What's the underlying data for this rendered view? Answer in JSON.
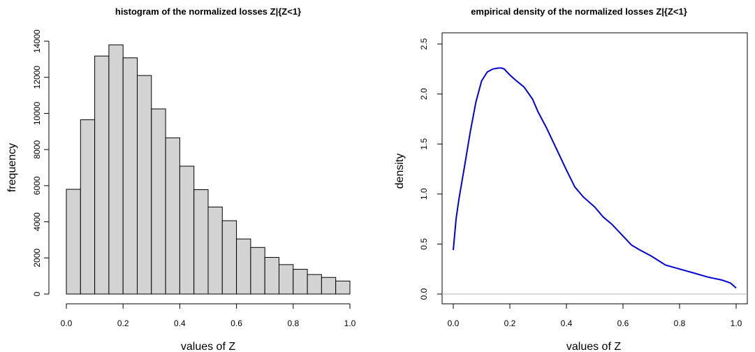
{
  "chart_data": [
    {
      "type": "bar",
      "title": "histogram of the normalized losses Z|{Z<1}",
      "xlabel": "values of Z",
      "ylabel": "frequency",
      "bin_edges": [
        0.0,
        0.05,
        0.1,
        0.15,
        0.2,
        0.25,
        0.3,
        0.35,
        0.4,
        0.45,
        0.5,
        0.55,
        0.6,
        0.65,
        0.7,
        0.75,
        0.8,
        0.85,
        0.9,
        0.95,
        1.0
      ],
      "values": [
        5800,
        9650,
        13180,
        13800,
        13080,
        12100,
        10250,
        8650,
        7080,
        5780,
        4820,
        4060,
        3050,
        2580,
        2030,
        1630,
        1370,
        1080,
        920,
        720
      ],
      "xlim": [
        0,
        1
      ],
      "ylim": [
        0,
        14000
      ],
      "x_ticks": [
        "0.0",
        "0.2",
        "0.4",
        "0.6",
        "0.8",
        "1.0"
      ],
      "y_ticks": [
        "0",
        "2000",
        "4000",
        "6000",
        "8000",
        "10000",
        "12000",
        "14000"
      ],
      "bar_color": "#d3d3d3"
    },
    {
      "type": "line",
      "title": "empirical density of the normalized losses Z|{Z<1}",
      "xlabel": "values of Z",
      "ylabel": "density",
      "x": [
        0.0,
        0.01,
        0.02,
        0.04,
        0.06,
        0.08,
        0.1,
        0.12,
        0.14,
        0.16,
        0.17,
        0.18,
        0.2,
        0.22,
        0.25,
        0.28,
        0.3,
        0.33,
        0.36,
        0.4,
        0.43,
        0.46,
        0.5,
        0.53,
        0.56,
        0.6,
        0.63,
        0.66,
        0.7,
        0.75,
        0.8,
        0.85,
        0.9,
        0.95,
        0.98,
        1.0
      ],
      "y": [
        0.44,
        0.75,
        0.95,
        1.28,
        1.62,
        1.92,
        2.13,
        2.22,
        2.25,
        2.26,
        2.26,
        2.25,
        2.19,
        2.14,
        2.07,
        1.95,
        1.82,
        1.66,
        1.48,
        1.24,
        1.07,
        0.97,
        0.87,
        0.77,
        0.7,
        0.58,
        0.49,
        0.44,
        0.38,
        0.29,
        0.25,
        0.21,
        0.17,
        0.14,
        0.11,
        0.06
      ],
      "xlim": [
        0,
        1
      ],
      "ylim": [
        0,
        2.5
      ],
      "x_ticks": [
        "0.0",
        "0.2",
        "0.4",
        "0.6",
        "0.8",
        "1.0"
      ],
      "y_ticks": [
        "0.0",
        "0.5",
        "1.0",
        "1.5",
        "2.0",
        "2.5"
      ],
      "line_color": "#0000dd",
      "baseline_color": "#b0b0b0"
    }
  ]
}
